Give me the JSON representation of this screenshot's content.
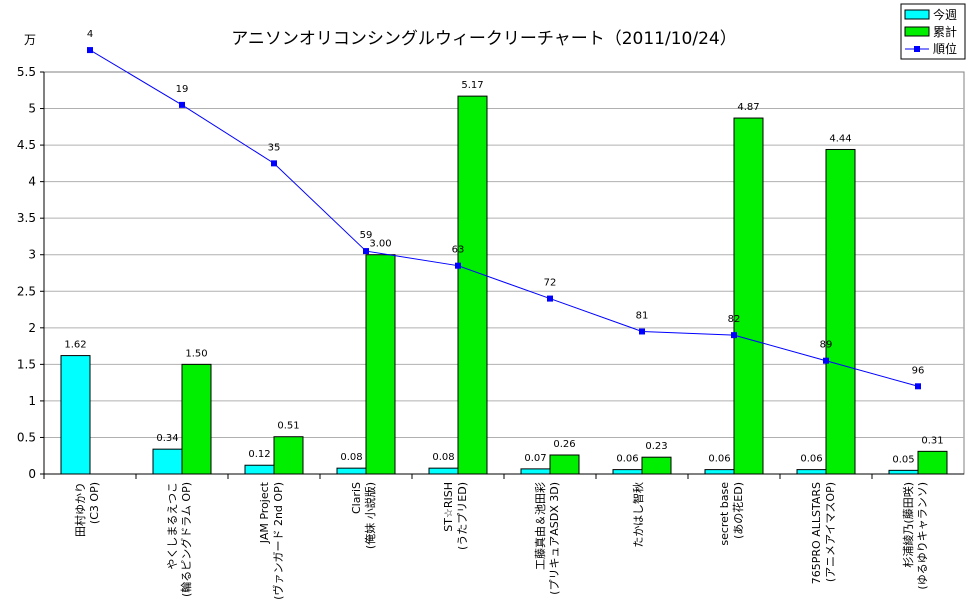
{
  "chart_data": {
    "type": "bar",
    "title": "アニソンオリコンシングルウィークリーチャート（2011/10/24）",
    "ylabel": "万",
    "ylim": [
      0,
      5.5
    ],
    "yticks": [
      "0",
      "0.5",
      "1",
      "1.5",
      "2",
      "2.5",
      "3",
      "3.5",
      "4",
      "4.5",
      "5",
      "5.5"
    ],
    "grid": true,
    "legend_position": "top-right",
    "categories": [
      [
        "田村ゆかり",
        "(C3 OP)"
      ],
      [
        "やくしまるえつこ",
        "(輪るピングドラム OP)"
      ],
      [
        "JAM Project",
        "(ヴァンガード 2nd OP)"
      ],
      [
        "ClariS",
        "(俺妹 小説版)"
      ],
      [
        "ST☆RISH",
        "(うたプリED)"
      ],
      [
        "工藤真由＆池田彩",
        "(プリキュアASDX 3D)"
      ],
      [
        "たかはし智秋",
        ""
      ],
      [
        "secret base",
        "(あの花ED)"
      ],
      [
        "765PRO ALLSTARS",
        "(アニメアイマスOP)"
      ],
      [
        "杉浦綾乃(藤田咲)",
        "(ゆるゆりキャランソ)"
      ]
    ],
    "series": [
      {
        "name": "今週",
        "type": "bar",
        "color": "#00ffff",
        "values": [
          1.62,
          0.34,
          0.12,
          0.08,
          0.08,
          0.07,
          0.06,
          0.06,
          0.06,
          0.05
        ],
        "labels": [
          "1.62",
          "0.34",
          "0.12",
          "0.08",
          "0.08",
          "0.07",
          "0.06",
          "0.06",
          "0.06",
          "0.05"
        ]
      },
      {
        "name": "累計",
        "type": "bar",
        "color": "#00ee00",
        "values": [
          null,
          1.5,
          0.51,
          3.0,
          5.17,
          0.26,
          0.23,
          4.87,
          4.44,
          0.31
        ],
        "labels": [
          "",
          "1.50",
          "0.51",
          "3.00",
          "5.17",
          "0.26",
          "0.23",
          "4.87",
          "4.44",
          "0.31"
        ]
      },
      {
        "name": "順位",
        "type": "line",
        "color": "#0000ff",
        "values": [
          4,
          19,
          35,
          59,
          63,
          72,
          81,
          82,
          89,
          96
        ],
        "labels": [
          "4",
          "19",
          "35",
          "59",
          "63",
          "72",
          "81",
          "82",
          "89",
          "96"
        ]
      }
    ]
  }
}
